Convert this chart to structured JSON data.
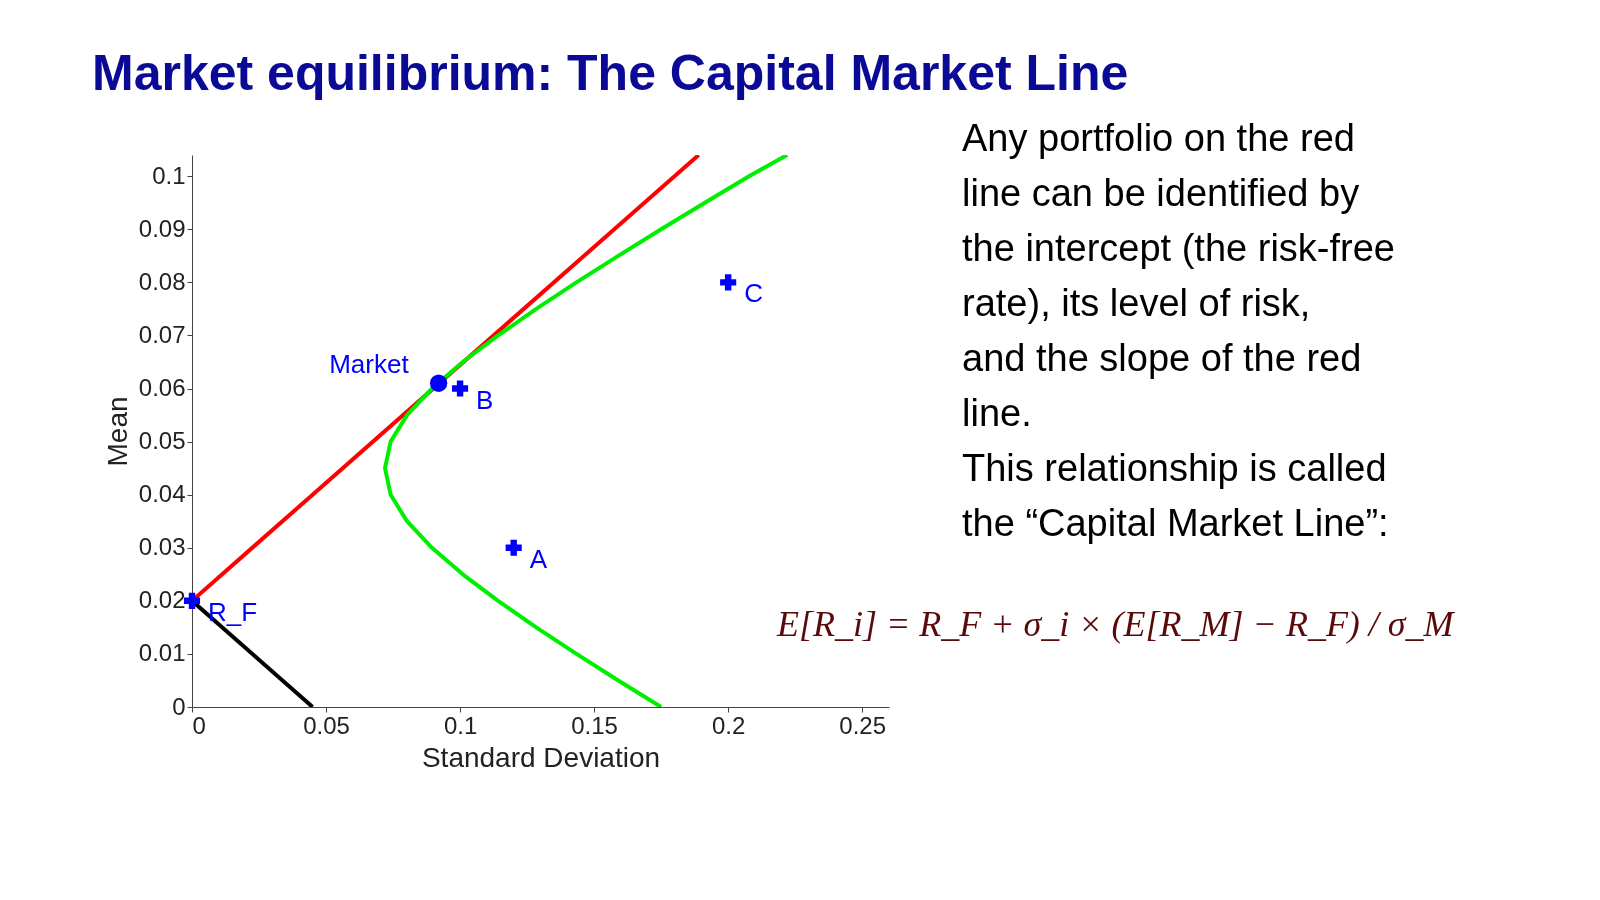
{
  "chart_data": {
    "type": "line",
    "title": "Market equilibrium: The Capital Market Line",
    "xlabel": "Standard Deviation",
    "ylabel": "Mean",
    "xlim": [
      0,
      0.26
    ],
    "ylim": [
      0,
      0.104
    ],
    "xticks": [
      0,
      0.05,
      0.1,
      0.15,
      0.2,
      0.25
    ],
    "yticks": [
      0,
      0.01,
      0.02,
      0.03,
      0.04,
      0.05,
      0.06,
      0.07,
      0.08,
      0.09,
      0.1
    ],
    "grid": false,
    "series": [
      {
        "color": "#ff0000",
        "x": [
          0,
          0.189
        ],
        "values": [
          0.02,
          0.104
        ]
      },
      {
        "color": "#00ee00",
        "x": [
          0.175,
          0.159,
          0.1434,
          0.1284,
          0.1142,
          0.101,
          0.0895,
          0.0802,
          0.0741,
          0.072,
          0.0741,
          0.0802,
          0.0895,
          0.101,
          0.1142,
          0.1284,
          0.1434,
          0.159,
          0.175,
          0.1913,
          0.2078,
          0.222
        ],
        "values": [
          0,
          0.005,
          0.01,
          0.015,
          0.02,
          0.025,
          0.03,
          0.035,
          0.04,
          0.045,
          0.05,
          0.055,
          0.06,
          0.065,
          0.07,
          0.075,
          0.08,
          0.085,
          0.09,
          0.095,
          0.1,
          0.104
        ]
      },
      {
        "color": "#000000",
        "x": [
          0,
          0.045
        ],
        "values": [
          0.02,
          0
        ]
      },
      {
        "type": "scatter",
        "color": "#0000ff",
        "marker": "cross",
        "x": [
          0,
          0.1,
          0.12,
          0.2
        ],
        "values": [
          0.02,
          0.06,
          0.03,
          0.08
        ]
      },
      {
        "type": "scatter",
        "color": "#0000ff",
        "marker": "circle",
        "x": [
          0.092
        ],
        "values": [
          0.061
        ]
      }
    ],
    "annotations": [
      {
        "text": "Market",
        "x": 0.092,
        "y": 0.061
      },
      {
        "text": "B",
        "x": 0.1,
        "y": 0.06
      },
      {
        "text": "A",
        "x": 0.12,
        "y": 0.03
      },
      {
        "text": "C",
        "x": 0.2,
        "y": 0.08
      },
      {
        "text": "R_F",
        "x": 0,
        "y": 0.02
      },
      "Any portfolio on the red line can be identified by the intercept (the risk-free rate), its level of risk, and the slope of the red line.",
      "This relationship is called the “Capital Market Line”:",
      "E[R_i] = R_F + σ_i × (E[R_M] − R_F) / σ_M"
    ]
  }
}
